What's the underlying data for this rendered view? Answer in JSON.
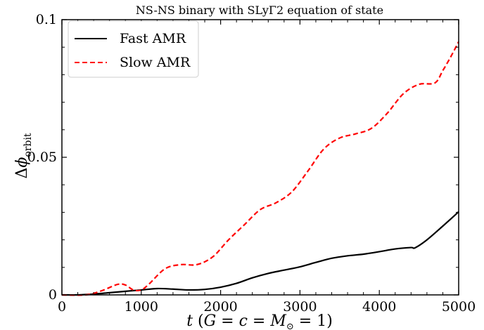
{
  "chart_data": {
    "type": "line",
    "title": "NS-NS binary with SLyΓ2 equation of state",
    "xlabel": "t (G = c = M⊙ = 1)",
    "ylabel": "Δφorbit",
    "xlim": [
      0,
      5000
    ],
    "ylim": [
      0,
      0.1
    ],
    "x_ticks": [
      0,
      1000,
      2000,
      3000,
      4000,
      5000
    ],
    "x_tick_labels": [
      "0",
      "1000",
      "2000",
      "3000",
      "4000",
      "5000"
    ],
    "y_ticks": [
      0,
      0.05,
      0.1
    ],
    "y_tick_labels": [
      "0",
      "0.05",
      "0.1"
    ],
    "legend_position": "top-left",
    "grid": false,
    "series": [
      {
        "name": "Fast AMR",
        "color": "#000000",
        "style": "solid",
        "x": [
          0,
          200,
          400,
          600,
          800,
          1000,
          1200,
          1400,
          1600,
          1800,
          2000,
          2200,
          2400,
          2600,
          2800,
          3000,
          3200,
          3400,
          3600,
          3800,
          4000,
          4200,
          4400,
          4450,
          4600,
          4800,
          5000
        ],
        "y": [
          0.0,
          0.0,
          0.0003,
          0.0008,
          0.0013,
          0.0018,
          0.0023,
          0.0021,
          0.0018,
          0.002,
          0.0028,
          0.0042,
          0.0062,
          0.0078,
          0.009,
          0.0102,
          0.0118,
          0.0133,
          0.0142,
          0.0148,
          0.0157,
          0.0167,
          0.0172,
          0.0171,
          0.02,
          0.025,
          0.0302
        ]
      },
      {
        "name": "Slow AMR",
        "color": "#ff0000",
        "style": "dashed",
        "x": [
          0,
          300,
          500,
          700,
          800,
          900,
          1000,
          1100,
          1300,
          1500,
          1700,
          1900,
          2100,
          2300,
          2500,
          2700,
          2900,
          3100,
          3300,
          3500,
          3700,
          3900,
          4100,
          4300,
          4500,
          4700,
          4800,
          4900,
          5000
        ],
        "y": [
          0.0,
          0.0,
          0.0015,
          0.0038,
          0.0036,
          0.0018,
          0.0018,
          0.004,
          0.0095,
          0.011,
          0.011,
          0.0138,
          0.02,
          0.0255,
          0.031,
          0.0335,
          0.0375,
          0.045,
          0.053,
          0.057,
          0.0585,
          0.0605,
          0.066,
          0.073,
          0.0765,
          0.077,
          0.0815,
          0.0865,
          0.092
        ]
      }
    ]
  }
}
